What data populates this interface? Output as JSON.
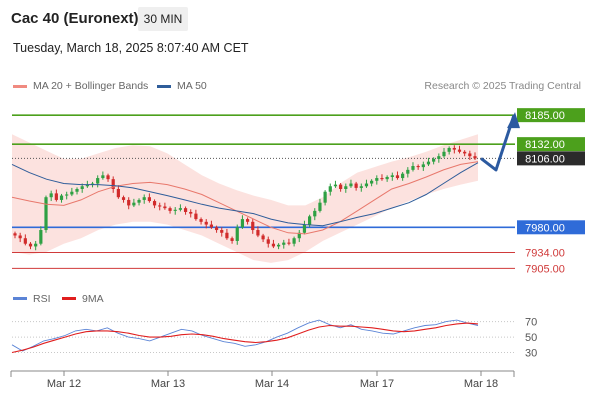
{
  "header": {
    "title": "Cac 40 (Euronext)",
    "timeframe": "30 MIN",
    "timestamp": "Tuesday, March 18, 2025 8:07:40 AM CET"
  },
  "legend": {
    "ma20": {
      "label": "MA 20 + Bollinger Bands",
      "color": "#f08a80"
    },
    "ma50": {
      "label": "MA 50",
      "color": "#2f5d9a"
    },
    "credit": "Research © 2025 Trading Central"
  },
  "chart_data": [
    {
      "type": "candlestick",
      "title": "Cac 40 (Euronext)",
      "x_ticks": [
        "Mar 12",
        "Mar 13",
        "Mar 14",
        "Mar 17",
        "Mar 18"
      ],
      "ylim": [
        7880,
        8220
      ],
      "levels": [
        {
          "value": 8185.0,
          "label": "8185.00",
          "color": "#4ca01c",
          "kind": "resistance"
        },
        {
          "value": 8132.0,
          "label": "8132.00",
          "color": "#4ca01c",
          "kind": "resistance"
        },
        {
          "value": 8106.0,
          "label": "8106.00",
          "color": "#2b2b2b",
          "kind": "last"
        },
        {
          "value": 7980.0,
          "label": "7980.00",
          "color": "#2f6bd8",
          "kind": "pivot"
        },
        {
          "value": 7934.0,
          "label": "7934.00",
          "color": "#d03a3a",
          "kind": "support"
        },
        {
          "value": 7905.0,
          "label": "7905.00",
          "color": "#d03a3a",
          "kind": "support"
        }
      ],
      "series": [
        {
          "name": "MA 20",
          "values": [
            8035,
            8028,
            8022,
            8020,
            8030,
            8045,
            8055,
            8060,
            8062,
            8058,
            8050,
            8040,
            8025,
            8010,
            7995,
            7980,
            7970,
            7968,
            7975,
            7990,
            8010,
            8030,
            8050,
            8060,
            8072,
            8085,
            8095,
            8100
          ]
        },
        {
          "name": "MA 50",
          "values": [
            8095,
            8080,
            8068,
            8060,
            8058,
            8058,
            8056,
            8052,
            8045,
            8038,
            8030,
            8022,
            8015,
            8010,
            8005,
            7995,
            7988,
            7985,
            7983,
            7990,
            7998,
            8005,
            8015,
            8025,
            8040,
            8060,
            8080,
            8098
          ]
        }
      ],
      "bollinger_upper": [
        8150,
        8135,
        8120,
        8105,
        8105,
        8115,
        8125,
        8130,
        8128,
        8115,
        8095,
        8075,
        8060,
        8048,
        8038,
        8030,
        8020,
        8020,
        8035,
        8060,
        8080,
        8090,
        8100,
        8108,
        8118,
        8130,
        8140,
        8150
      ],
      "bollinger_lower": [
        7935,
        7930,
        7935,
        7950,
        7960,
        7975,
        7985,
        7990,
        7990,
        7985,
        7975,
        7965,
        7950,
        7935,
        7920,
        7915,
        7920,
        7935,
        7955,
        7970,
        7985,
        8000,
        8015,
        8028,
        8040,
        8050,
        8058,
        8065
      ],
      "closes": [
        7965,
        7960,
        7950,
        7945,
        7950,
        7975,
        8035,
        8042,
        8030,
        8038,
        8040,
        8045,
        8050,
        8055,
        8058,
        8060,
        8070,
        8075,
        8068,
        8050,
        8035,
        8030,
        8020,
        8025,
        8030,
        8035,
        8028,
        8020,
        8018,
        8015,
        8010,
        8012,
        8015,
        8008,
        8005,
        7995,
        7990,
        7985,
        7980,
        7975,
        7970,
        7960,
        7955,
        7980,
        7995,
        7990,
        7975,
        7965,
        7958,
        7950,
        7945,
        7948,
        7952,
        7950,
        7960,
        7970,
        7985,
        8000,
        8010,
        8025,
        8045,
        8055,
        8058,
        8050,
        8055,
        8060,
        8052,
        8055,
        8060,
        8065,
        8070,
        8068,
        8072,
        8075,
        8070,
        8078,
        8085,
        8092,
        8090,
        8095,
        8100,
        8105,
        8110,
        8118,
        8125,
        8122,
        8118,
        8115,
        8110,
        8106
      ],
      "projection": [
        8106,
        8085,
        8185
      ]
    },
    {
      "type": "line",
      "title": "RSI",
      "x_ticks": [
        "Mar 12",
        "Mar 13",
        "Mar 14",
        "Mar 17",
        "Mar 18"
      ],
      "y_ticks": [
        30,
        50,
        70
      ],
      "ylim": [
        10,
        85
      ],
      "series": [
        {
          "name": "RSI",
          "color": "#5b84d6",
          "values": [
            40,
            32,
            38,
            45,
            48,
            52,
            58,
            60,
            58,
            62,
            55,
            50,
            48,
            45,
            50,
            55,
            60,
            58,
            52,
            48,
            44,
            42,
            38,
            40,
            44,
            50,
            55,
            62,
            68,
            72,
            66,
            62,
            66,
            60,
            58,
            55,
            54,
            58,
            62,
            65,
            66,
            70,
            72,
            68,
            65
          ]
        },
        {
          "name": "9MA",
          "color": "#e01e1e",
          "values": [
            30,
            33,
            37,
            42,
            46,
            50,
            54,
            57,
            58,
            58,
            57,
            55,
            52,
            50,
            50,
            51,
            53,
            54,
            53,
            51,
            48,
            46,
            44,
            43,
            44,
            46,
            49,
            54,
            59,
            63,
            65,
            64,
            64,
            63,
            62,
            60,
            58,
            57,
            58,
            60,
            62,
            65,
            67,
            68,
            67
          ]
        }
      ]
    }
  ]
}
